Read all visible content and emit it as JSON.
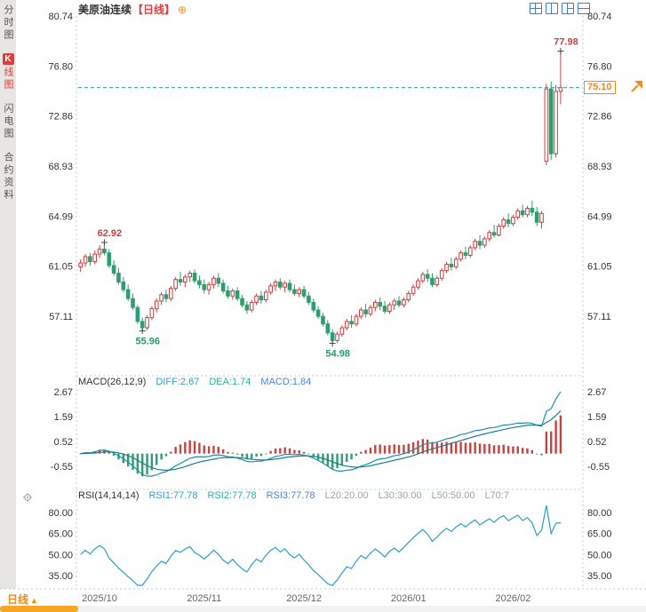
{
  "header": {
    "title": "美原油连续",
    "period_tag": "【日线】",
    "toolbar_icons": [
      "layout-grid-icon",
      "layout-vertical-split-icon",
      "layout-mixed-icon",
      "layout-horizontal-split-icon"
    ]
  },
  "sidebar": {
    "items": [
      {
        "label": "分时图",
        "active": false
      },
      {
        "label": "K线图",
        "badge": "K",
        "rest": "线图",
        "active": true
      },
      {
        "label": "闪电图",
        "active": false
      },
      {
        "label": "合约资料",
        "active": false
      }
    ]
  },
  "bottom": {
    "period_label": "日线",
    "period_arrow": "▲"
  },
  "chart_data": {
    "type": "candlestick",
    "title": "美原油连续",
    "period": "日线",
    "ohlc_order": "open,high,low,close",
    "current_price": "75.10",
    "y_axis": {
      "labels": [
        "80.74",
        "76.80",
        "72.86",
        "68.93",
        "64.99",
        "61.05",
        "57.11"
      ]
    },
    "x_axis": {
      "ticks": [
        {
          "label": "2025/10",
          "day": 1
        },
        {
          "label": "2025/11",
          "day": 27
        },
        {
          "label": "2025/12",
          "day": 48
        },
        {
          "label": "2026/01",
          "day": 70
        },
        {
          "label": "2026/02",
          "day": 92
        }
      ]
    },
    "annotations": [
      {
        "text": "62.92",
        "day": 6,
        "price": 62.92,
        "position": "above",
        "type": "high"
      },
      {
        "text": "55.96",
        "day": 14,
        "price": 55.96,
        "position": "below",
        "type": "low"
      },
      {
        "text": "54.98",
        "day": 54,
        "price": 54.98,
        "position": "below",
        "type": "low"
      },
      {
        "text": "77.98",
        "day": 102,
        "price": 77.98,
        "position": "above",
        "type": "high"
      }
    ],
    "candles": [
      [
        61.0,
        61.6,
        60.6,
        61.3
      ],
      [
        61.3,
        62.0,
        61.0,
        61.8
      ],
      [
        61.8,
        62.1,
        61.1,
        61.4
      ],
      [
        61.4,
        62.3,
        61.2,
        62.0
      ],
      [
        62.0,
        62.7,
        61.7,
        62.4
      ],
      [
        62.4,
        62.92,
        61.9,
        62.1
      ],
      [
        62.1,
        62.4,
        60.9,
        61.1
      ],
      [
        61.1,
        61.5,
        60.3,
        60.5
      ],
      [
        60.5,
        60.9,
        59.6,
        59.8
      ],
      [
        59.8,
        60.2,
        59.0,
        59.2
      ],
      [
        59.2,
        59.6,
        58.3,
        58.5
      ],
      [
        58.5,
        58.9,
        57.6,
        57.8
      ],
      [
        57.8,
        58.0,
        56.5,
        56.7
      ],
      [
        56.7,
        57.0,
        55.96,
        56.2
      ],
      [
        56.2,
        57.2,
        56.0,
        57.0
      ],
      [
        57.0,
        57.9,
        56.8,
        57.7
      ],
      [
        57.7,
        58.5,
        57.4,
        58.3
      ],
      [
        58.3,
        59.0,
        58.0,
        58.8
      ],
      [
        58.8,
        59.2,
        58.2,
        58.5
      ],
      [
        58.5,
        59.5,
        58.3,
        59.3
      ],
      [
        59.3,
        60.2,
        59.1,
        60.0
      ],
      [
        60.0,
        60.6,
        59.5,
        59.8
      ],
      [
        59.8,
        60.4,
        59.4,
        60.2
      ],
      [
        60.2,
        60.7,
        59.8,
        60.5
      ],
      [
        60.5,
        60.8,
        59.7,
        59.9
      ],
      [
        59.9,
        60.3,
        59.3,
        59.6
      ],
      [
        59.6,
        60.0,
        58.9,
        59.2
      ],
      [
        59.2,
        59.8,
        58.8,
        59.6
      ],
      [
        59.6,
        60.3,
        59.3,
        60.1
      ],
      [
        60.1,
        60.5,
        59.4,
        59.7
      ],
      [
        59.7,
        60.0,
        58.9,
        59.1
      ],
      [
        59.1,
        59.5,
        58.5,
        58.7
      ],
      [
        58.7,
        59.3,
        58.4,
        59.1
      ],
      [
        59.1,
        59.4,
        58.3,
        58.5
      ],
      [
        58.5,
        58.8,
        57.8,
        58.0
      ],
      [
        58.0,
        58.3,
        57.3,
        57.6
      ],
      [
        57.6,
        58.4,
        57.4,
        58.2
      ],
      [
        58.2,
        58.9,
        58.0,
        58.7
      ],
      [
        58.7,
        59.1,
        58.1,
        58.4
      ],
      [
        58.4,
        59.2,
        58.2,
        59.0
      ],
      [
        59.0,
        59.7,
        58.8,
        59.5
      ],
      [
        59.5,
        60.0,
        59.1,
        59.8
      ],
      [
        59.8,
        60.1,
        59.2,
        59.4
      ],
      [
        59.4,
        59.9,
        59.0,
        59.7
      ],
      [
        59.7,
        60.0,
        59.0,
        59.2
      ],
      [
        59.2,
        59.6,
        58.7,
        58.9
      ],
      [
        58.9,
        59.4,
        58.6,
        59.2
      ],
      [
        59.2,
        59.5,
        58.5,
        58.7
      ],
      [
        58.7,
        59.0,
        58.0,
        58.2
      ],
      [
        58.2,
        58.5,
        57.4,
        57.6
      ],
      [
        57.6,
        57.9,
        56.9,
        57.1
      ],
      [
        57.1,
        57.4,
        56.3,
        56.5
      ],
      [
        56.5,
        56.8,
        55.6,
        55.8
      ],
      [
        55.8,
        56.1,
        54.98,
        55.2
      ],
      [
        55.2,
        55.9,
        55.0,
        55.7
      ],
      [
        55.7,
        56.4,
        55.5,
        56.2
      ],
      [
        56.2,
        56.9,
        56.0,
        56.7
      ],
      [
        56.7,
        57.2,
        56.2,
        56.5
      ],
      [
        56.5,
        57.3,
        56.3,
        57.1
      ],
      [
        57.1,
        57.8,
        56.9,
        57.6
      ],
      [
        57.6,
        58.1,
        57.0,
        57.3
      ],
      [
        57.3,
        58.0,
        57.1,
        57.8
      ],
      [
        57.8,
        58.4,
        57.5,
        58.2
      ],
      [
        58.2,
        58.6,
        57.6,
        57.9
      ],
      [
        57.9,
        58.3,
        57.3,
        57.5
      ],
      [
        57.5,
        58.2,
        57.3,
        58.0
      ],
      [
        58.0,
        58.5,
        57.6,
        58.3
      ],
      [
        58.3,
        58.7,
        57.8,
        58.0
      ],
      [
        58.0,
        58.6,
        57.8,
        58.4
      ],
      [
        58.4,
        59.1,
        58.2,
        58.9
      ],
      [
        58.9,
        59.6,
        58.7,
        59.4
      ],
      [
        59.4,
        60.1,
        59.2,
        59.9
      ],
      [
        59.9,
        60.6,
        59.7,
        60.4
      ],
      [
        60.4,
        60.8,
        59.8,
        60.1
      ],
      [
        60.1,
        60.5,
        59.4,
        59.6
      ],
      [
        59.6,
        60.3,
        59.4,
        60.1
      ],
      [
        60.1,
        60.9,
        59.9,
        60.7
      ],
      [
        60.7,
        61.4,
        60.5,
        61.2
      ],
      [
        61.2,
        61.7,
        60.7,
        61.0
      ],
      [
        61.0,
        61.8,
        60.8,
        61.6
      ],
      [
        61.6,
        62.3,
        61.4,
        62.1
      ],
      [
        62.1,
        62.6,
        61.6,
        61.9
      ],
      [
        61.9,
        62.7,
        61.7,
        62.5
      ],
      [
        62.5,
        63.2,
        62.3,
        63.0
      ],
      [
        63.0,
        63.5,
        62.4,
        62.7
      ],
      [
        62.7,
        63.4,
        62.5,
        63.2
      ],
      [
        63.2,
        63.9,
        63.0,
        63.7
      ],
      [
        63.7,
        64.3,
        63.3,
        63.5
      ],
      [
        63.5,
        64.4,
        63.4,
        64.2
      ],
      [
        64.2,
        64.9,
        64.0,
        64.7
      ],
      [
        64.7,
        65.2,
        64.1,
        64.4
      ],
      [
        64.4,
        65.1,
        64.2,
        64.9
      ],
      [
        64.9,
        65.6,
        64.7,
        65.4
      ],
      [
        65.4,
        65.9,
        64.9,
        65.1
      ],
      [
        65.1,
        65.8,
        64.9,
        65.6
      ],
      [
        65.6,
        66.2,
        65.0,
        65.3
      ],
      [
        65.3,
        65.7,
        64.2,
        64.5
      ],
      [
        64.5,
        65.4,
        64.0,
        65.2
      ],
      [
        69.3,
        75.4,
        69.0,
        75.0
      ],
      [
        75.0,
        75.6,
        69.4,
        69.9
      ],
      [
        69.9,
        75.3,
        69.6,
        74.8
      ],
      [
        74.8,
        77.98,
        73.8,
        75.1
      ]
    ],
    "indicators": {
      "macd": {
        "name": "MACD(26,12,9)",
        "diff_label": "DIFF:2.67",
        "dea_label": "DEA:1.74",
        "macd_label": "MACD:1.84",
        "diff_value": 2.67,
        "axis_labels": [
          "2.67",
          "1.59",
          "0.52",
          "-0.55"
        ]
      },
      "rsi": {
        "name": "RSI(14,14,14)",
        "rsi1_label": "RSI1:77.78",
        "rsi2_label": "RSI2:77.78",
        "rsi3_label": "RSI3:77.78",
        "l20_label": "L20:20.00",
        "l30_label": "L30:30.00",
        "l50_label": "L50:50.00",
        "l70_label": "L70:7",
        "axis_labels": [
          "80.00",
          "65.00",
          "50.00",
          "35.00"
        ]
      }
    },
    "colors": {
      "up": "#c9413f",
      "down": "#2e9e6e",
      "price_line": "#2aa7a0",
      "accent": "#f08b1e",
      "annotation_high": "#d23c3c",
      "annotation_low": "#1f9d6a",
      "icon_blue": "#3b7fd4",
      "sidebar_active": "#e23b3b"
    }
  }
}
